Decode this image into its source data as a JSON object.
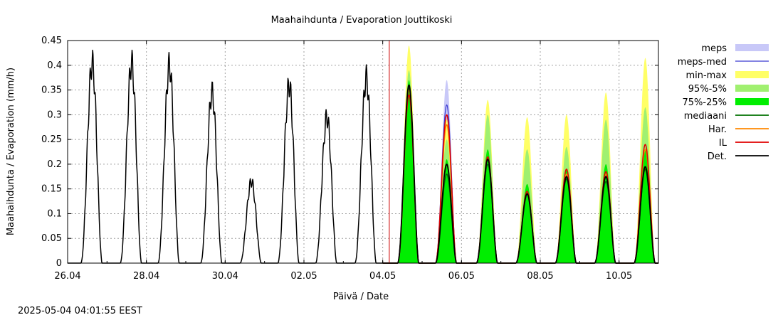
{
  "chart_data": {
    "type": "line",
    "title": "Maahaihdunta / Evaporation  Jouttikoski",
    "xlabel": "Päivä / Date",
    "ylabel": "Maahaihdunta / Evaporation (mm/h)",
    "x_range": [
      "2025-04-26T00:00",
      "2025-05-11T00:00"
    ],
    "ylim": [
      0,
      0.45
    ],
    "y_ticks": [
      0,
      0.05,
      0.1,
      0.15,
      0.2,
      0.25,
      0.3,
      0.35,
      0.4,
      0.45
    ],
    "y_tick_labels": [
      "0",
      "0.05",
      "0.1",
      "0.15",
      "0.2",
      "0.25",
      "0.3",
      "0.35",
      "0.4",
      "0.45"
    ],
    "x_ticks": [
      "2025-04-26",
      "2025-04-28",
      "2025-04-30",
      "2025-05-02",
      "2025-05-04",
      "2025-05-06",
      "2025-05-08",
      "2025-05-10"
    ],
    "x_tick_labels": [
      "26.04",
      "28.04",
      "30.04",
      "02.05",
      "04.05",
      "06.05",
      "08.05",
      "10.05"
    ],
    "grid": true,
    "legend_position": "right",
    "forecast_start": "2025-05-04T04:00",
    "timestamp": "2025-05-04 04:01:55 EEST",
    "legend": [
      {
        "label": "meps",
        "kind": "band",
        "color": "#c8c8f8"
      },
      {
        "label": "meps-med",
        "kind": "line",
        "color": "#3a3ad0"
      },
      {
        "label": "min-max",
        "kind": "band",
        "color": "#ffff66"
      },
      {
        "label": "95%-5%",
        "kind": "band",
        "color": "#a0f070"
      },
      {
        "label": "75%-25%",
        "kind": "band",
        "color": "#00ee00"
      },
      {
        "label": "mediaani",
        "kind": "line",
        "color": "#007000"
      },
      {
        "label": "Har.",
        "kind": "line",
        "color": "#ff8800"
      },
      {
        "label": "IL",
        "kind": "line",
        "color": "#e00000"
      },
      {
        "label": "Det.",
        "kind": "line",
        "color": "#000000"
      }
    ],
    "observed_daily_peaks": [
      {
        "date": "2025-04-26T15:00",
        "value": 0.405
      },
      {
        "date": "2025-04-27T15:00",
        "value": 0.405
      },
      {
        "date": "2025-04-28T14:00",
        "value": 0.4
      },
      {
        "date": "2025-04-29T16:00",
        "value": 0.345
      },
      {
        "date": "2025-04-30T16:00",
        "value": 0.165
      },
      {
        "date": "2025-05-01T15:00",
        "value": 0.36
      },
      {
        "date": "2025-05-02T14:00",
        "value": 0.295
      },
      {
        "date": "2025-05-03T14:00",
        "value": 0.375
      }
    ],
    "forecast_daily_peaks": [
      {
        "date": "2025-05-04T16:00",
        "det": 0.36,
        "il": 0.34,
        "har": 0.35,
        "median": 0.355,
        "meps_med": 0.36,
        "meps_max": 0.36,
        "p75": 0.37,
        "p25": 0.33,
        "p95": 0.39,
        "p5": 0.3,
        "max": 0.44,
        "min": 0.26
      },
      {
        "date": "2025-05-05T15:00",
        "det": 0.2,
        "il": 0.3,
        "har": 0.28,
        "median": 0.18,
        "meps_med": 0.32,
        "meps_max": 0.37,
        "p75": 0.21,
        "p25": 0.15,
        "p95": 0.25,
        "p5": 0.12,
        "max": 0.29,
        "min": 0.1
      },
      {
        "date": "2025-05-06T16:00",
        "det": 0.21,
        "il": 0.215,
        "har": 0.21,
        "median": 0.2,
        "meps_med": 0,
        "meps_max": 0,
        "p75": 0.23,
        "p25": 0.15,
        "p95": 0.3,
        "p5": 0.1,
        "max": 0.33,
        "min": 0.08
      },
      {
        "date": "2025-05-07T16:00",
        "det": 0.14,
        "il": 0.145,
        "har": 0.14,
        "median": 0.14,
        "meps_med": 0,
        "meps_max": 0,
        "p75": 0.16,
        "p25": 0.12,
        "p95": 0.23,
        "p5": 0.09,
        "max": 0.295,
        "min": 0.07
      },
      {
        "date": "2025-05-08T16:00",
        "det": 0.175,
        "il": 0.19,
        "har": 0.18,
        "median": 0.17,
        "meps_med": 0,
        "meps_max": 0,
        "p75": 0.19,
        "p25": 0.14,
        "p95": 0.235,
        "p5": 0.1,
        "max": 0.3,
        "min": 0.08
      },
      {
        "date": "2025-05-09T16:00",
        "det": 0.175,
        "il": 0.185,
        "har": 0.18,
        "median": 0.165,
        "meps_med": 0,
        "meps_max": 0,
        "p75": 0.2,
        "p25": 0.12,
        "p95": 0.29,
        "p5": 0.09,
        "max": 0.345,
        "min": 0.07
      },
      {
        "date": "2025-05-10T16:00",
        "det": 0.195,
        "il": 0.24,
        "har": 0.23,
        "median": 0.19,
        "meps_med": 0,
        "meps_max": 0,
        "p75": 0.23,
        "p25": 0.15,
        "p95": 0.315,
        "p5": 0.1,
        "max": 0.415,
        "min": 0.08
      }
    ]
  }
}
